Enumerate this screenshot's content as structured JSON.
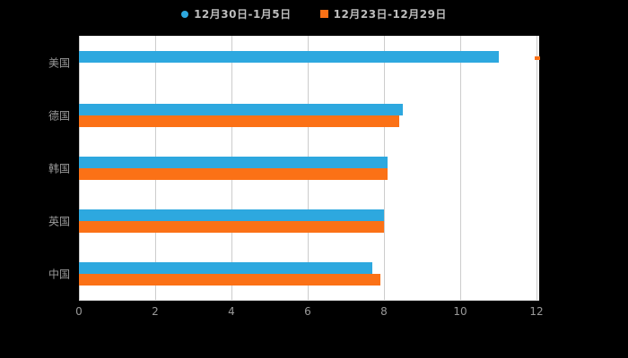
{
  "chart_data": {
    "type": "bar",
    "orientation": "horizontal",
    "title": "",
    "categories": [
      "美国",
      "德国",
      "韩国",
      "英国",
      "中国"
    ],
    "series": [
      {
        "name": "12月30日-1月5日",
        "marker": "circle",
        "color": "#2DA8DF",
        "values": [
          11,
          8.5,
          8.1,
          8,
          7.7
        ]
      },
      {
        "name": "12月23日-12月29日",
        "marker": "square",
        "color": "#FB7116",
        "values": [
          null,
          8.4,
          8.1,
          8,
          7.9
        ]
      }
    ],
    "x_ticks": [
      0,
      2,
      4,
      6,
      8,
      10,
      12
    ],
    "xlim": [
      0,
      12
    ],
    "grid": true,
    "legend_position": "top",
    "background": "#000000",
    "plot_background": "#FFFFFF",
    "axis_label_color": "#999999",
    "gridline_color": "#CCCCCC"
  },
  "edge_artifact": {
    "color": "#FB7116"
  }
}
